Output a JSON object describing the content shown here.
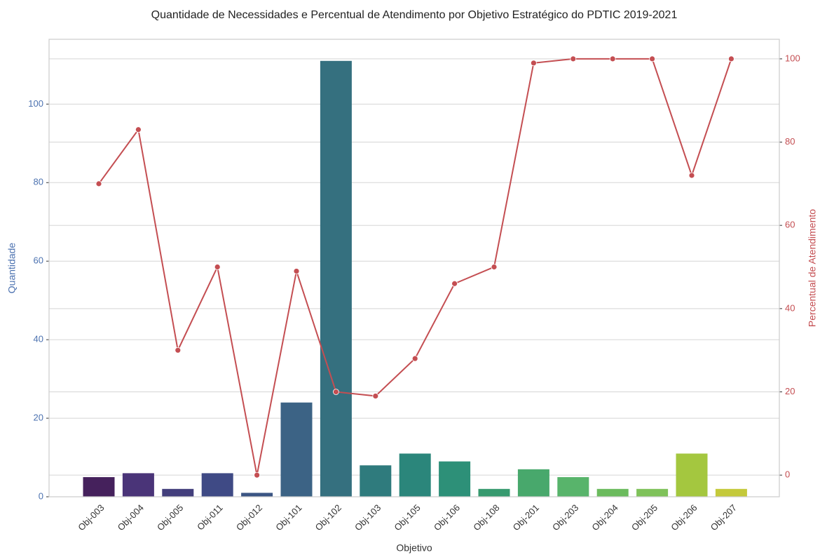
{
  "chart_data": {
    "type": "bar-line",
    "title": "Quantidade de Necessidades e Percentual de Atendimento por Objetivo Estratégico do PDTIC 2019-2021",
    "xlabel": "Objetivo",
    "ylabel": "Quantidade",
    "y2label": "Percentual de Atendimento",
    "categories": [
      "Obj-003",
      "Obj-004",
      "Obj-005",
      "Obj-011",
      "Obj-012",
      "Obj-101",
      "Obj-102",
      "Obj-103",
      "Obj-105",
      "Obj-106",
      "Obj-108",
      "Obj-201",
      "Obj-203",
      "Obj-204",
      "Obj-205",
      "Obj-206",
      "Obj-207"
    ],
    "series": [
      {
        "name": "Quantidade",
        "type": "bar",
        "axis": "y",
        "colors": [
          "#45215c",
          "#4a3478",
          "#433f7c",
          "#3f4a85",
          "#3b5583",
          "#3c6385",
          "#35707f",
          "#2f7b7d",
          "#2b867b",
          "#2d9078",
          "#379a6f",
          "#48a86c",
          "#58b46b",
          "#6bbb5d",
          "#7fc25a",
          "#a4c73f",
          "#c4c93b"
        ],
        "values": [
          5,
          6,
          2,
          6,
          1,
          24,
          111,
          8,
          11,
          9,
          2,
          7,
          5,
          2,
          2,
          11,
          2
        ]
      },
      {
        "name": "Percentual de Atendimento",
        "type": "line",
        "axis": "y2",
        "color": "#c44e52",
        "values": [
          70,
          83,
          30,
          50,
          0,
          49,
          20,
          19,
          28,
          46,
          50,
          99,
          100,
          100,
          100,
          72,
          100
        ]
      }
    ],
    "ylim": [
      0,
      116.5
    ],
    "yticks": [
      0,
      20,
      40,
      60,
      80,
      100
    ],
    "ylabel_color": "#4c72b0",
    "y2lim": [
      -5.2,
      104.7
    ],
    "y2ticks": [
      0,
      20,
      40,
      60,
      80,
      100
    ],
    "y2label_color": "#c44e52",
    "grid": true
  }
}
